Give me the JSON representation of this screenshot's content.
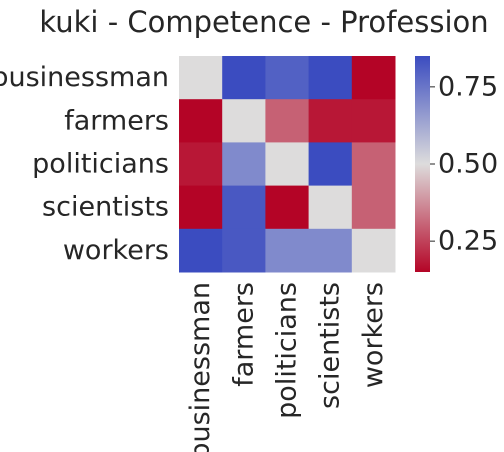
{
  "chart_data": {
    "type": "heatmap",
    "title": "kuki - Competence - Profession",
    "rows": [
      "businessman",
      "farmers",
      "politicians",
      "scientists",
      "workers"
    ],
    "columns": [
      "businessman",
      "farmers",
      "politicians",
      "scientists",
      "workers"
    ],
    "values": [
      [
        0.5,
        0.85,
        0.8,
        0.85,
        0.15
      ],
      [
        0.15,
        0.5,
        0.3,
        0.18,
        0.18
      ],
      [
        0.18,
        0.7,
        0.5,
        0.85,
        0.3
      ],
      [
        0.15,
        0.82,
        0.15,
        0.5,
        0.3
      ],
      [
        0.85,
        0.82,
        0.7,
        0.7,
        0.5
      ]
    ],
    "colormap": "coolwarm",
    "vmin": 0.15,
    "vmax": 0.85,
    "colorbar": {
      "ticks": [
        0.25,
        0.5,
        0.75
      ],
      "tick_labels": [
        "0.25",
        "0.50",
        "0.75"
      ]
    },
    "colors": {
      "low": "#b40426",
      "mid": "#dddcdc",
      "high": "#3b4cc0"
    }
  }
}
